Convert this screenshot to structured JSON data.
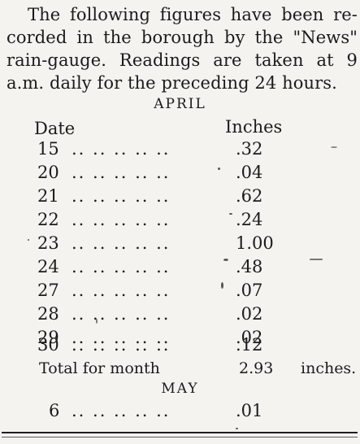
{
  "intro": {
    "line1": "The following figures have been re-",
    "line2": "corded in the borough by the \"News\"",
    "line3": "rain-gauge.  Readings are taken at 9",
    "line4": "a.m. daily for the preceding 24 hours."
  },
  "april": {
    "heading": "APRIL",
    "date_header": "Date",
    "inches_header": "Inches",
    "rows": [
      {
        "date": "15",
        "leaders": ".. .. .. .. ..",
        "inches": ".32"
      },
      {
        "date": "20",
        "leaders": ".. .. .. .. ..",
        "inches": ".04"
      },
      {
        "date": "21",
        "leaders": ".. .. .. .. ..",
        "inches": ".62"
      },
      {
        "date": "22",
        "leaders": ".. .. .. .. ..",
        "inches": ".24"
      },
      {
        "date": "23",
        "leaders": ".. .. .. .. ..",
        "inches": "1.00"
      },
      {
        "date": "24",
        "leaders": ".. .. .. .. ..",
        "inches": ".48"
      },
      {
        "date": "27",
        "leaders": ".. .. .. .. ..",
        "inches": ".07"
      },
      {
        "date": "28",
        "leaders": ".. .. .. .. ..",
        "inches": ".02"
      },
      {
        "date": "29",
        "leaders": ".. .. .. .. ..",
        "inches": ".02"
      },
      {
        "date": "30",
        "leaders": ".. .. .. .. ..",
        "inches": ".12"
      }
    ],
    "total_label": "Total  for  month",
    "total_value": "2.93",
    "total_unit": "inches."
  },
  "may": {
    "heading": "MAY",
    "rows": [
      {
        "date": "6",
        "leaders": ".. .. .. .. ..",
        "inches": ".01"
      }
    ]
  }
}
